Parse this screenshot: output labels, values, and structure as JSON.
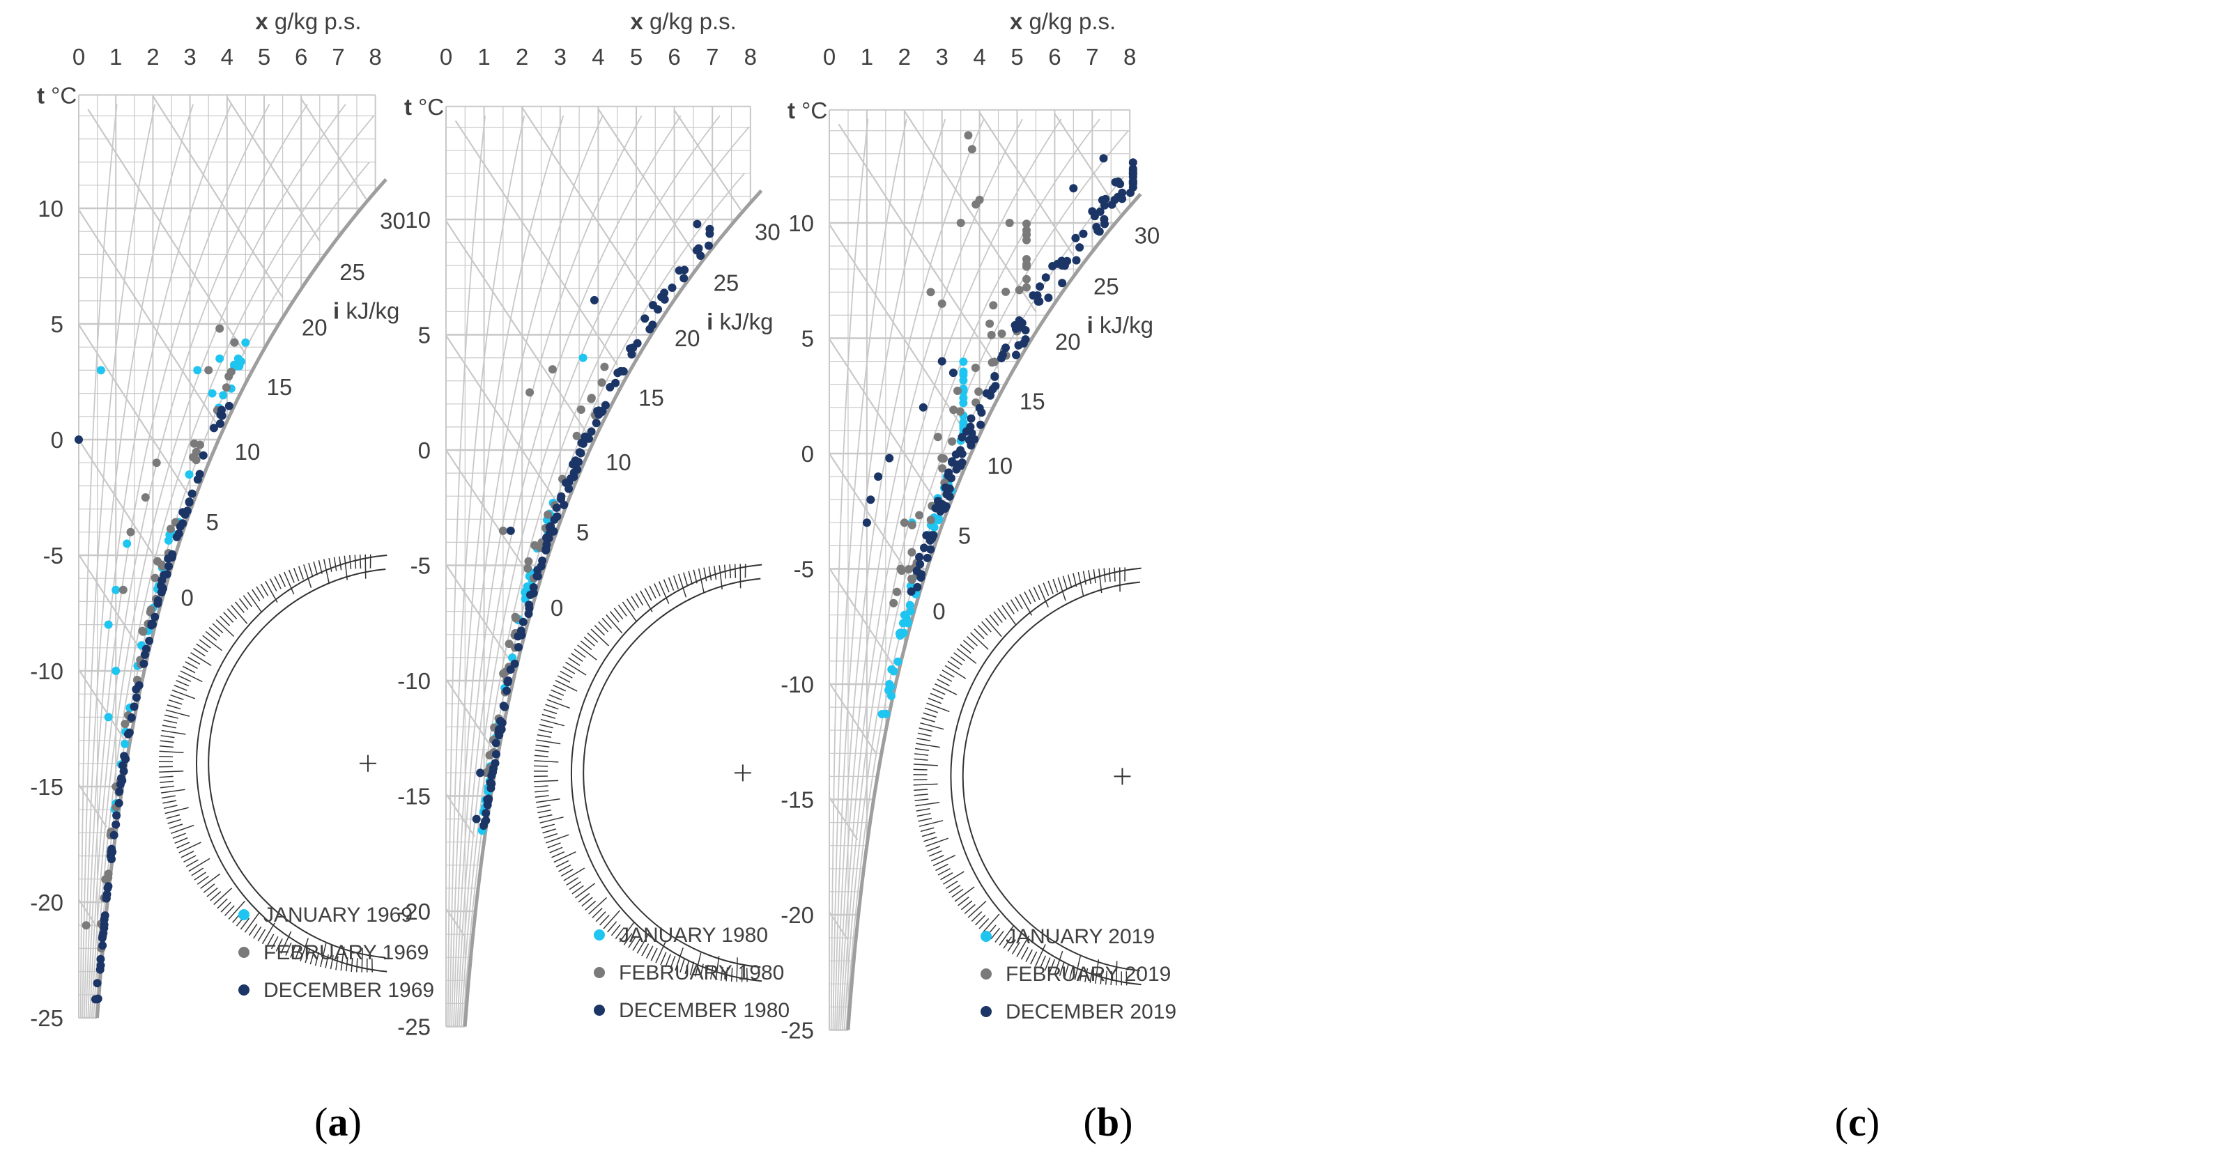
{
  "colors": {
    "january": "#1ec5f0",
    "february": "#7a7a7a",
    "december": "#1b3566",
    "grid": "#c8c8c8",
    "saturation": "#9e9e9e"
  },
  "axes": {
    "x_label_bold": "x",
    "x_label_rest": " g/kg p.s.",
    "t_label_bold": "t",
    "t_label_rest": " °C",
    "i_label_bold": "i",
    "i_label_rest": " kJ/kg",
    "x_ticks": [
      "0",
      "1",
      "2",
      "3",
      "4",
      "5",
      "6",
      "7",
      "8"
    ],
    "t_ticks": [
      "10",
      "5",
      "0",
      "-5",
      "-10",
      "-15",
      "-20",
      "-25"
    ],
    "i_ticks": [
      "0",
      "5",
      "10",
      "15",
      "20",
      "25",
      "30"
    ]
  },
  "chart_data": [
    {
      "type": "scatter",
      "caption": "(a)",
      "caption_letter": "a",
      "xlabel": "x g/kg p.s.",
      "ylabel": "t °C",
      "enthalpy_label": "i kJ/kg",
      "xlim": [
        0,
        8
      ],
      "ylim": [
        -25,
        15
      ],
      "legend": [
        "JANUARY 1969",
        "FEBRUARY 1969",
        "DECEMBER 1969"
      ],
      "series": [
        {
          "name": "JANUARY 1969",
          "seed": 11,
          "points": [
            [
              0.6,
              3.0
            ],
            [
              0.8,
              -8.0
            ],
            [
              1.0,
              -6.5
            ],
            [
              1.3,
              -4.5
            ],
            [
              3.2,
              3.0
            ],
            [
              3.8,
              3.5
            ],
            [
              4.2,
              4.2
            ],
            [
              4.3,
              3.5
            ],
            [
              0.8,
              -12.0
            ],
            [
              1.0,
              -10.0
            ],
            [
              3.6,
              2.0
            ]
          ],
          "bands": [
            [
              0.75,
              4.4,
              -16,
              4.2,
              0.07,
              0.13,
              30
            ]
          ]
        },
        {
          "name": "FEBRUARY 1969",
          "seed": 23,
          "points": [
            [
              0.2,
              -21.0
            ],
            [
              3.8,
              4.8
            ],
            [
              3.5,
              3.0
            ],
            [
              1.8,
              -2.5
            ],
            [
              2.1,
              -1.0
            ],
            [
              1.4,
              -4.0
            ],
            [
              1.2,
              -6.5
            ]
          ],
          "bands": [
            [
              0.65,
              4.0,
              -22,
              4.6,
              0.06,
              0.17,
              42
            ]
          ]
        },
        {
          "name": "DECEMBER 1969",
          "seed": 37,
          "points": [
            [
              0.0,
              0.0
            ],
            [
              0.45,
              -24.2
            ],
            [
              0.5,
              -23.5
            ]
          ],
          "bands": [
            [
              0.45,
              4.1,
              -24.2,
              1.6,
              0.02,
              0.07,
              85
            ]
          ]
        }
      ]
    },
    {
      "type": "scatter",
      "caption": "(b)",
      "caption_letter": "b",
      "xlabel": "x g/kg p.s.",
      "ylabel": "t °C",
      "enthalpy_label": "i kJ/kg",
      "xlim": [
        0,
        8
      ],
      "ylim": [
        -25,
        15
      ],
      "legend": [
        "JANUARY 1980",
        "FEBRUARY 1980",
        "DECEMBER 1980"
      ],
      "series": [
        {
          "name": "JANUARY 1980",
          "seed": 41,
          "points": [
            [
              0.95,
              -16.5
            ],
            [
              3.6,
              4.0
            ]
          ],
          "bands": [
            [
              0.9,
              3.2,
              -16.5,
              -2.0,
              0.07,
              0.13,
              32
            ]
          ]
        },
        {
          "name": "FEBRUARY 1980",
          "seed": 53,
          "points": [
            [
              2.2,
              2.5
            ],
            [
              2.8,
              3.5
            ],
            [
              1.5,
              -3.5
            ]
          ],
          "bands": [
            [
              1.0,
              4.2,
              -14,
              4.6,
              0.06,
              0.18,
              40
            ]
          ]
        },
        {
          "name": "DECEMBER 1980",
          "seed": 67,
          "points": [
            [
              0.8,
              -16.0
            ],
            [
              0.9,
              -14.0
            ],
            [
              1.7,
              -3.5
            ],
            [
              3.9,
              6.5
            ],
            [
              6.6,
              9.8
            ]
          ],
          "bands": [
            [
              0.8,
              6.6,
              -16.3,
              9.6,
              0.02,
              0.08,
              115
            ]
          ]
        }
      ]
    },
    {
      "type": "scatter",
      "caption": "(c)",
      "caption_letter": "c",
      "xlabel": "x g/kg p.s.",
      "ylabel": "t °C",
      "enthalpy_label": "i kJ/kg",
      "xlim": [
        0,
        8
      ],
      "ylim": [
        -25,
        15
      ],
      "legend": [
        "JANUARY 2019",
        "FEBRUARY 2019",
        "DECEMBER 2019"
      ],
      "series": [
        {
          "name": "JANUARY 2019",
          "seed": 71,
          "points": [
            [
              1.4,
              -11.3
            ],
            [
              1.6,
              -10.0
            ],
            [
              2.0,
              -7.0
            ],
            [
              2.3,
              -6.0
            ],
            [
              2.2,
              -3.0
            ]
          ],
          "bands": [
            [
              1.4,
              3.4,
              -11.3,
              4.0,
              0.02,
              0.12,
              55
            ]
          ]
        },
        {
          "name": "FEBRUARY 2019",
          "seed": 83,
          "points": [
            [
              3.7,
              13.8
            ],
            [
              3.8,
              13.2
            ],
            [
              3.5,
              10.0
            ],
            [
              3.9,
              10.8
            ],
            [
              4.0,
              11.0
            ],
            [
              4.8,
              10.0
            ],
            [
              2.7,
              7.0
            ],
            [
              3.0,
              6.5
            ],
            [
              1.9,
              -5.0
            ],
            [
              1.8,
              -6.0
            ],
            [
              2.0,
              -3.0
            ]
          ],
          "bands": [
            [
              1.8,
              5.0,
              -6.5,
              10.0,
              0.08,
              0.28,
              48
            ]
          ]
        },
        {
          "name": "DECEMBER 2019",
          "seed": 97,
          "points": [
            [
              1.0,
              -3.0
            ],
            [
              1.1,
              -2.0
            ],
            [
              1.3,
              -1.0
            ],
            [
              1.6,
              -0.2
            ],
            [
              7.3,
              12.8
            ],
            [
              6.5,
              11.5
            ],
            [
              7.6,
              11.0
            ],
            [
              7.0,
              10.5
            ],
            [
              3.0,
              4.0
            ],
            [
              3.3,
              3.5
            ],
            [
              2.5,
              2.0
            ]
          ],
          "bands": [
            [
              1.7,
              7.7,
              -6.0,
              12.8,
              0.02,
              0.12,
              120
            ]
          ]
        }
      ]
    }
  ]
}
